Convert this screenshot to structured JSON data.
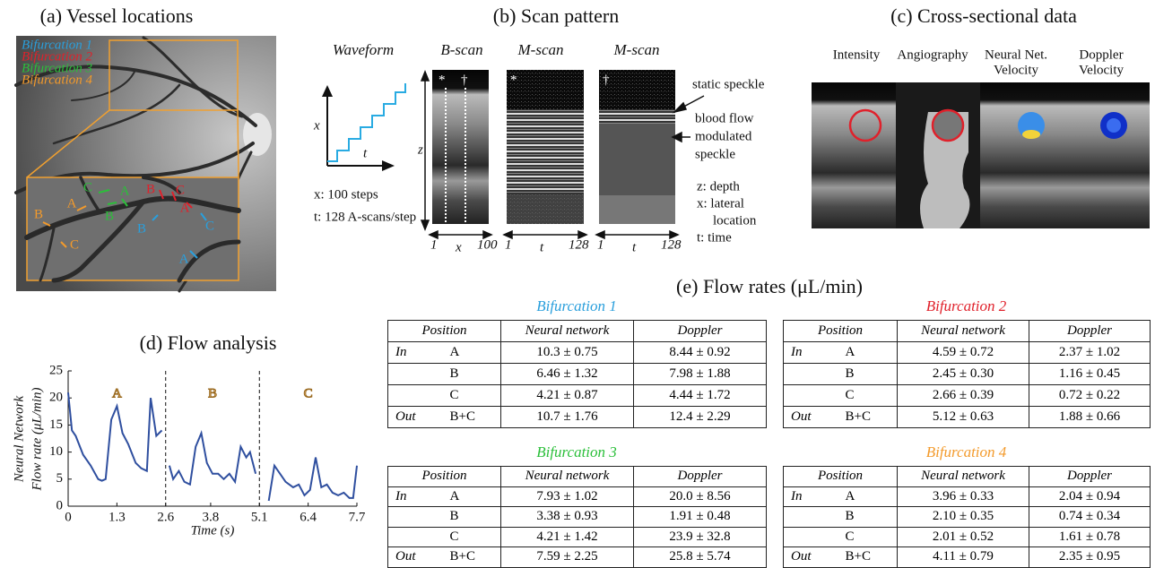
{
  "panel_a": {
    "title": "(a) Vessel locations",
    "vessel_labels": [
      {
        "text": "B",
        "color": "#f39a2b"
      },
      {
        "text": "A",
        "color": "#f39a2b"
      },
      {
        "text": "C",
        "color": "#f39a2b"
      },
      {
        "text": "C",
        "color": "#2bbf3a"
      },
      {
        "text": "B",
        "color": "#2bbf3a"
      },
      {
        "text": "A",
        "color": "#2bbf3a"
      },
      {
        "text": "B",
        "color": "#e0212b"
      },
      {
        "text": "C",
        "color": "#e0212b"
      },
      {
        "text": "A",
        "color": "#e0212b"
      },
      {
        "text": "B",
        "color": "#2a9fdc"
      },
      {
        "text": "C",
        "color": "#2a9fdc"
      },
      {
        "text": "A",
        "color": "#2a9fdc"
      }
    ]
  },
  "panel_b": {
    "title": "(b) Scan pattern",
    "headers": [
      "Waveform",
      "B-scan",
      "M-scan",
      "M-scan"
    ],
    "waveform_axes": {
      "vertical": "x",
      "horizontal": "t"
    },
    "waveform_notes": [
      "x: 100 steps",
      "t: 128 A-scans/step"
    ],
    "depth_axis": "z",
    "b_scan_axis": {
      "start": "1",
      "label": "x",
      "end": "100"
    },
    "m_scan_axis": {
      "start": "1",
      "label": "t",
      "end": "128"
    },
    "markers": [
      "*",
      "†"
    ],
    "static_annotation": "static speckle",
    "flow_annotation": [
      "blood flow",
      "modulated",
      "speckle"
    ],
    "legend": [
      "z: depth",
      "x: lateral",
      "location",
      "t: time"
    ]
  },
  "panel_c": {
    "title": "(c) Cross-sectional data",
    "columns": [
      [
        "Intensity"
      ],
      [
        "Angiography"
      ],
      [
        "Neural Net.",
        "Velocity"
      ],
      [
        "Doppler",
        "Velocity"
      ]
    ]
  },
  "chart_data": {
    "type": "line",
    "title": "(d) Flow analysis",
    "ylabel": [
      "Neural Network",
      "Flow rate (μL/min)"
    ],
    "xlabel": "Time (s)",
    "x": [
      0,
      0.1,
      0.2,
      0.4,
      0.6,
      0.8,
      0.9,
      1.0,
      1.15,
      1.3,
      1.45,
      1.6,
      1.8,
      1.95,
      2.1,
      2.2,
      2.35,
      2.5,
      2.6,
      2.7,
      2.8,
      2.95,
      3.1,
      3.25,
      3.4,
      3.55,
      3.7,
      3.85,
      4.0,
      4.15,
      4.3,
      4.45,
      4.6,
      4.75,
      4.85,
      5.0,
      5.1,
      5.35,
      5.5,
      5.65,
      5.8,
      6.0,
      6.15,
      6.3,
      6.45,
      6.6,
      6.75,
      6.9,
      7.05,
      7.2,
      7.35,
      7.5,
      7.6,
      7.7
    ],
    "series": [
      {
        "color": "#2f4f9f",
        "values": [
          21,
          14,
          13,
          9.5,
          7.5,
          5,
          4.7,
          5,
          16,
          18.5,
          13.5,
          11.5,
          8,
          7,
          6.5,
          20,
          13,
          14,
          null,
          7.5,
          5,
          6.5,
          4.5,
          4,
          11,
          13.5,
          8,
          6,
          6,
          5,
          6,
          4.5,
          11,
          9,
          10,
          6,
          null,
          1,
          7.5,
          6,
          4.5,
          3.5,
          4,
          2,
          3,
          9,
          3.5,
          4,
          2.5,
          2,
          2.5,
          1.5,
          1.5,
          7.5
        ]
      }
    ],
    "xlim": [
      0,
      7.7
    ],
    "ylim": [
      0,
      25
    ],
    "xticks": [
      0,
      1.3,
      2.6,
      3.8,
      5.1,
      6.4,
      7.7
    ],
    "yticks": [
      0,
      5,
      10,
      15,
      20,
      25
    ],
    "dividers": [
      2.6,
      5.1
    ],
    "segment_labels": [
      "A",
      "B",
      "C"
    ],
    "segment_label_color": "#f2c27c"
  },
  "panel_e": {
    "title": "(e) Flow rates (μL/min)",
    "header": [
      "Position",
      "Neural network",
      "Doppler"
    ],
    "tables": [
      {
        "title": "Bifurcation 1",
        "color": "#2a9fdc",
        "rows": [
          {
            "group": "In",
            "position": "A",
            "neural_network": "10.3 ± 0.75",
            "doppler": "8.44 ± 0.92"
          },
          {
            "position": "B",
            "neural_network": "6.46 ± 1.32",
            "doppler": "7.98 ± 1.88"
          },
          {
            "position": "C",
            "neural_network": "4.21 ± 0.87",
            "doppler": "4.44 ± 1.72"
          },
          {
            "group": "Out",
            "position": "B+C",
            "neural_network": "10.7 ± 1.76",
            "doppler": "12.4 ± 2.29"
          }
        ]
      },
      {
        "title": "Bifurcation 2",
        "color": "#e0212b",
        "rows": [
          {
            "group": "In",
            "position": "A",
            "neural_network": "4.59 ± 0.72",
            "doppler": "2.37 ± 1.02"
          },
          {
            "position": "B",
            "neural_network": "2.45 ± 0.30",
            "doppler": "1.16 ± 0.45"
          },
          {
            "position": "C",
            "neural_network": "2.66 ± 0.39",
            "doppler": "0.72 ± 0.22"
          },
          {
            "group": "Out",
            "position": "B+C",
            "neural_network": "5.12 ± 0.63",
            "doppler": "1.88 ± 0.66"
          }
        ]
      },
      {
        "title": "Bifurcation 3",
        "color": "#2bbf3a",
        "rows": [
          {
            "group": "In",
            "position": "A",
            "neural_network": "7.93 ± 1.02",
            "doppler": "20.0 ± 8.56"
          },
          {
            "position": "B",
            "neural_network": "3.38 ± 0.93",
            "doppler": "1.91 ± 0.48"
          },
          {
            "position": "C",
            "neural_network": "4.21 ± 1.42",
            "doppler": "23.9 ± 32.8"
          },
          {
            "group": "Out",
            "position": "B+C",
            "neural_network": "7.59 ± 2.25",
            "doppler": "25.8 ± 5.74"
          }
        ]
      },
      {
        "title": "Bifurcation 4",
        "color": "#f39a2b",
        "rows": [
          {
            "group": "In",
            "position": "A",
            "neural_network": "3.96 ± 0.33",
            "doppler": "2.04 ± 0.94"
          },
          {
            "position": "B",
            "neural_network": "2.10 ± 0.35",
            "doppler": "0.74 ± 0.34"
          },
          {
            "position": "C",
            "neural_network": "2.01 ± 0.52",
            "doppler": "1.61 ± 0.78"
          },
          {
            "group": "Out",
            "position": "B+C",
            "neural_network": "4.11 ± 0.79",
            "doppler": "2.35 ± 0.95"
          }
        ]
      }
    ]
  }
}
